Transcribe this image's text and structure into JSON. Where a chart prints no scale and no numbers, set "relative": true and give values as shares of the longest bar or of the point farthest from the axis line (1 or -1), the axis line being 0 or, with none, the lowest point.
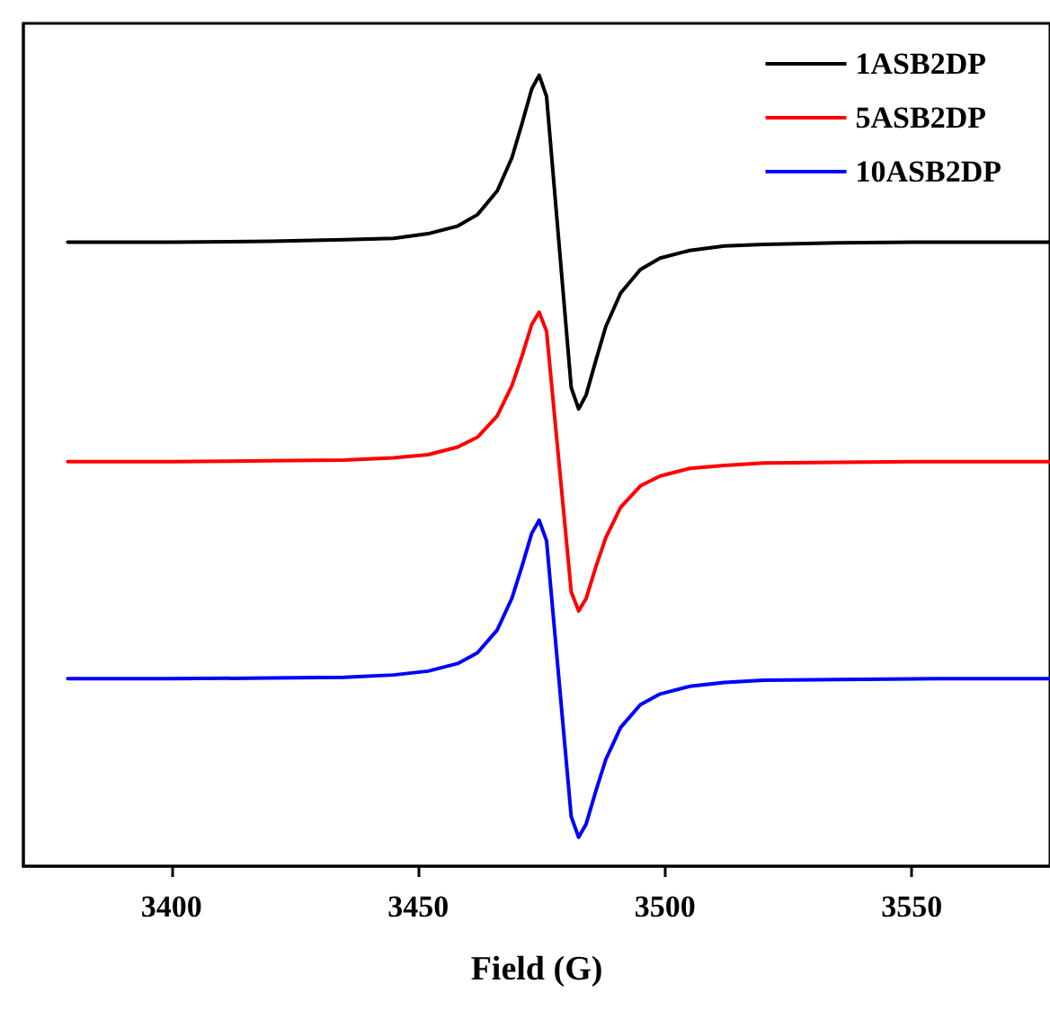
{
  "chart_data": {
    "type": "line",
    "xlabel": "Field (G)",
    "relative": true,
    "legend": "top right",
    "marker": "none",
    "line_style": "solid",
    "grid": false,
    "x": [
      3379,
      3400,
      3420,
      3435,
      3445,
      3452,
      3458,
      3462,
      3466,
      3469,
      3471,
      3473,
      3474.5,
      3476,
      3478.5,
      3481,
      3482.5,
      3484,
      3486,
      3488,
      3491,
      3495,
      3499,
      3505,
      3512,
      3520,
      3535,
      3555,
      3578
    ],
    "xlim": [
      3370,
      3578
    ],
    "xticks": [
      3400,
      3450,
      3500,
      3550
    ],
    "series": [
      {
        "name": "1ASB2DP",
        "color": "#000000",
        "values": [
          0.781,
          0.781,
          0.782,
          0.784,
          0.786,
          0.792,
          0.802,
          0.817,
          0.848,
          0.892,
          0.936,
          0.982,
          1.0,
          0.972,
          0.781,
          0.59,
          0.562,
          0.58,
          0.626,
          0.67,
          0.714,
          0.745,
          0.76,
          0.77,
          0.776,
          0.778,
          0.78,
          0.781,
          0.781
        ]
      },
      {
        "name": "5ASB2DP",
        "color": "#ff0000",
        "values": [
          0.493,
          0.493,
          0.494,
          0.495,
          0.498,
          0.502,
          0.512,
          0.525,
          0.553,
          0.593,
          0.631,
          0.673,
          0.689,
          0.664,
          0.493,
          0.322,
          0.297,
          0.313,
          0.355,
          0.393,
          0.433,
          0.461,
          0.474,
          0.484,
          0.488,
          0.491,
          0.492,
          0.493,
          0.493
        ]
      },
      {
        "name": "10ASB2DP",
        "color": "#0000ff",
        "values": [
          0.208,
          0.208,
          0.209,
          0.21,
          0.213,
          0.218,
          0.228,
          0.242,
          0.272,
          0.314,
          0.355,
          0.399,
          0.416,
          0.389,
          0.208,
          0.027,
          0,
          0.017,
          0.061,
          0.102,
          0.144,
          0.174,
          0.188,
          0.198,
          0.203,
          0.206,
          0.207,
          0.208,
          0.208
        ]
      }
    ]
  }
}
